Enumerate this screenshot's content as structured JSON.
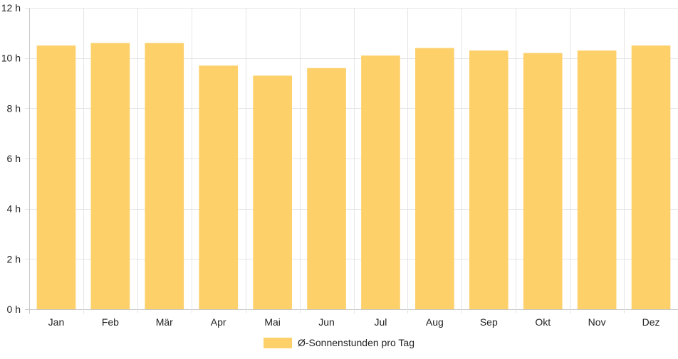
{
  "chart_data": {
    "type": "bar",
    "categories": [
      "Jan",
      "Feb",
      "Mär",
      "Apr",
      "Mai",
      "Jun",
      "Jul",
      "Aug",
      "Sep",
      "Okt",
      "Nov",
      "Dez"
    ],
    "series": [
      {
        "name": "Ø-Sonnenstunden pro Tag",
        "values": [
          10.5,
          10.6,
          10.6,
          9.7,
          9.3,
          9.6,
          10.1,
          10.4,
          10.3,
          10.2,
          10.3,
          10.5
        ]
      }
    ],
    "ylim": [
      0,
      12
    ],
    "yticks": [
      0,
      2,
      4,
      6,
      8,
      10,
      12
    ],
    "ytick_labels": [
      "0 h",
      "2 h",
      "4 h",
      "6 h",
      "8 h",
      "10 h",
      "12 h"
    ],
    "grid": true,
    "legend": "bottom",
    "colors": {
      "bar": "#FDD06A",
      "grid": "#e5e5e5",
      "axis": "#c8c8c8"
    }
  }
}
